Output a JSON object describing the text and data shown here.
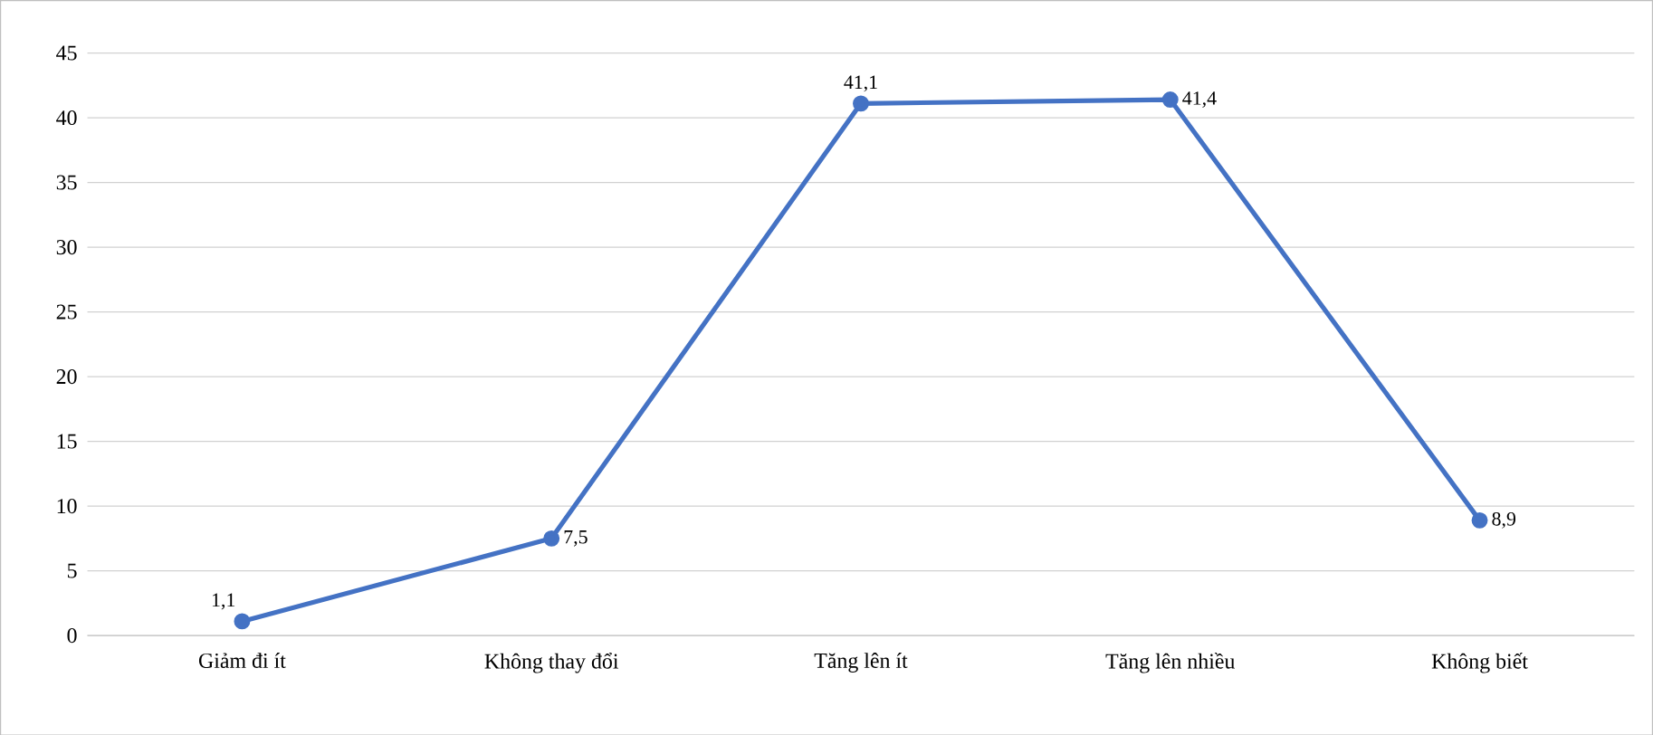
{
  "chart_data": {
    "type": "line",
    "categories": [
      "Giảm đi ít",
      "Không thay đổi",
      "Tăng lên ít",
      "Tăng lên nhiều",
      "Không biết"
    ],
    "series": [
      {
        "color": "#4472c4",
        "values": [
          1.1,
          7.5,
          41.1,
          41.4,
          8.9
        ],
        "value_labels": [
          "1,1",
          "7,5",
          "41,1",
          "41,4",
          "8,9"
        ]
      }
    ],
    "ylim": [
      0,
      45
    ],
    "yticks": [
      0,
      5,
      10,
      15,
      20,
      25,
      30,
      35,
      40,
      45
    ],
    "grid": "y",
    "marker": "circle",
    "line_style": "solid"
  }
}
